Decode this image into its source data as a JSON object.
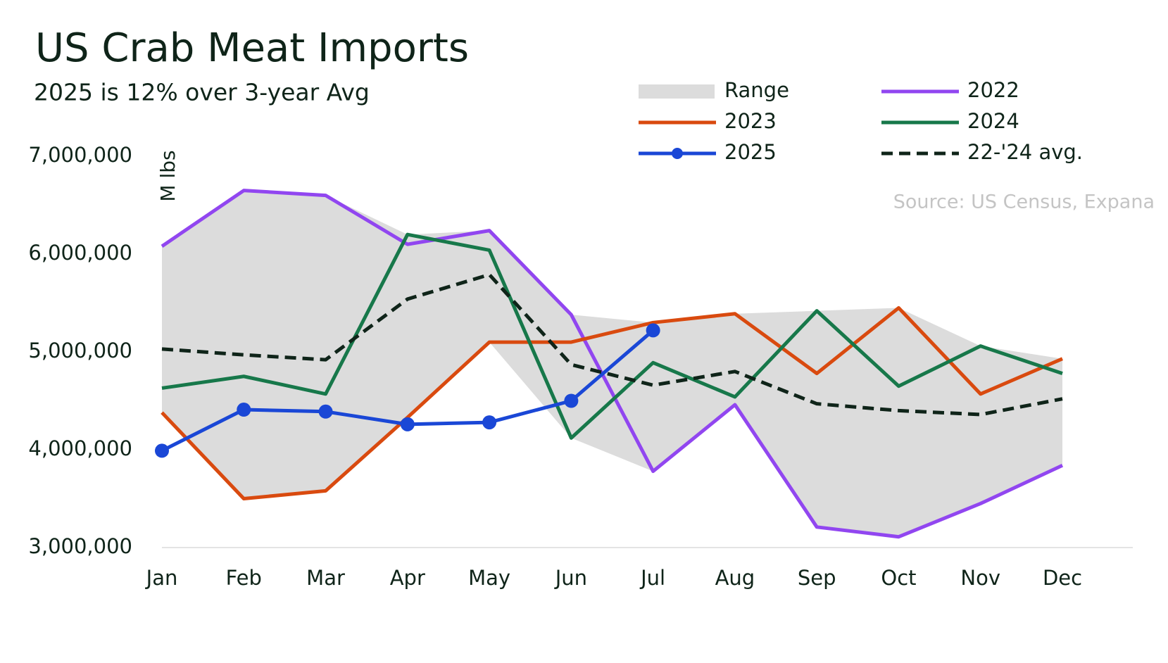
{
  "chart_data": {
    "type": "line",
    "title": "US Crab Meat Imports",
    "subtitle": "2025 is 12% over 3-year Avg",
    "y_label": "M lbs",
    "source": "Source: US Census, Expana",
    "categories": [
      "Jan",
      "Feb",
      "Mar",
      "Apr",
      "May",
      "Jun",
      "Jul",
      "Aug",
      "Sep",
      "Oct",
      "Nov",
      "Dec"
    ],
    "range": {
      "name": "Range",
      "color": "#dcdcdc",
      "low": [
        4380000,
        3500000,
        3580000,
        4330000,
        5100000,
        4120000,
        3780000,
        4460000,
        3210000,
        3110000,
        3450000,
        3840000
      ],
      "high": [
        6080000,
        6650000,
        6600000,
        6200000,
        6240000,
        5380000,
        5300000,
        5390000,
        5420000,
        5450000,
        5060000,
        4930000
      ]
    },
    "series": [
      {
        "name": "2022",
        "color": "#9146f0",
        "values": [
          6080000,
          6650000,
          6600000,
          6100000,
          6240000,
          5380000,
          3780000,
          4460000,
          3210000,
          3110000,
          3450000,
          3840000
        ]
      },
      {
        "name": "2023",
        "color": "#d94a0f",
        "values": [
          4380000,
          3500000,
          3580000,
          4330000,
          5100000,
          5100000,
          5300000,
          5390000,
          4780000,
          5450000,
          4570000,
          4930000
        ]
      },
      {
        "name": "2024",
        "color": "#17784a",
        "values": [
          4630000,
          4750000,
          4570000,
          6200000,
          6040000,
          4120000,
          4890000,
          4540000,
          5420000,
          4650000,
          5060000,
          4780000
        ]
      },
      {
        "name": "2025",
        "color": "#1a47d6",
        "markers": true,
        "values": [
          3990000,
          4410000,
          4390000,
          4260000,
          4280000,
          4500000,
          5220000,
          null,
          null,
          null,
          null,
          null
        ]
      },
      {
        "name": "22-'24 avg.",
        "color": "#0f2419",
        "dashed": true,
        "values": [
          5030000,
          4970000,
          4920000,
          5540000,
          5790000,
          4870000,
          4660000,
          4800000,
          4470000,
          4400000,
          4360000,
          4520000
        ]
      }
    ],
    "ylim": [
      3000000,
      7000000
    ],
    "yticks": [
      {
        "value": 3000000,
        "label": "3,000,000"
      },
      {
        "value": 4000000,
        "label": "4,000,000"
      },
      {
        "value": 5000000,
        "label": "5,000,000"
      },
      {
        "value": 6000000,
        "label": "6,000,000"
      },
      {
        "value": 7000000,
        "label": "7,000,000"
      }
    ],
    "grid": false
  }
}
